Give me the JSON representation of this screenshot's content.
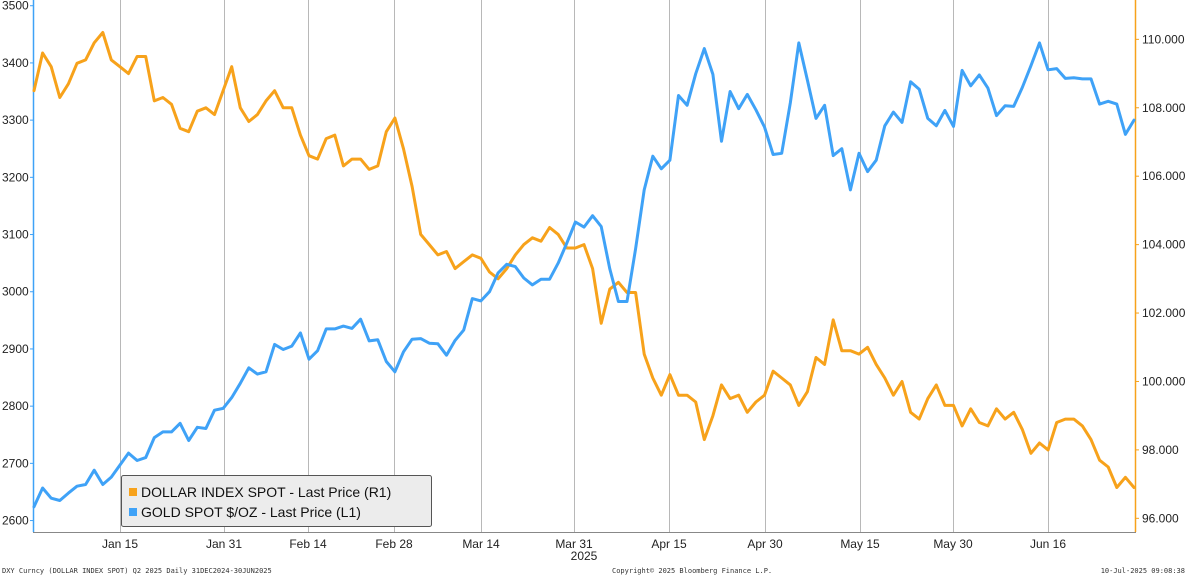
{
  "colors": {
    "dollar": "#F7A21B",
    "gold": "#3FA2F7",
    "left_axis": "#3FA2F7",
    "right_axis": "#F7A21B",
    "grid": "#b8b8b8",
    "legend_border": "#555555",
    "legend_bg": "#ececec"
  },
  "chart_data": {
    "type": "line",
    "title": "",
    "x_labels": [
      "Jan 15",
      "Jan 31",
      "Feb 14",
      "Feb 28",
      "Mar 14",
      "Mar 31",
      "Apr 15",
      "Apr 30",
      "May 15",
      "May 30",
      "Jun 16"
    ],
    "x_sub_label": "2025",
    "left_axis": {
      "ticks": [
        "3500",
        "3400",
        "3300",
        "3200",
        "3100",
        "3000",
        "2900",
        "2800",
        "2700",
        "2600"
      ],
      "range": [
        2580,
        3510
      ]
    },
    "right_axis": {
      "ticks": [
        "110.000",
        "108.000",
        "106.000",
        "104.000",
        "102.000",
        "100.000",
        "98.000",
        "96.000"
      ],
      "range": [
        95.6,
        111.15
      ]
    },
    "grid": "vertical",
    "legend_position": "bottom-left",
    "series": [
      {
        "name": "DOLLAR INDEX SPOT - Last Price (R1)",
        "axis": "right",
        "values": [
          108.5,
          109.6,
          109.2,
          108.3,
          108.7,
          109.3,
          109.4,
          109.9,
          110.2,
          109.4,
          109.2,
          109.0,
          109.5,
          109.5,
          108.2,
          108.3,
          108.1,
          107.4,
          107.3,
          107.9,
          108.0,
          107.8,
          108.5,
          109.2,
          108.0,
          107.6,
          107.8,
          108.2,
          108.5,
          108.0,
          108.0,
          107.2,
          106.6,
          106.5,
          107.1,
          107.2,
          106.3,
          106.5,
          106.5,
          106.2,
          106.3,
          107.3,
          107.7,
          106.8,
          105.7,
          104.3,
          104.0,
          103.7,
          103.8,
          103.3,
          103.5,
          103.7,
          103.6,
          103.2,
          103.0,
          103.3,
          103.7,
          104.0,
          104.2,
          104.1,
          104.5,
          104.3,
          103.9,
          103.9,
          104.0,
          103.3,
          101.7,
          102.7,
          102.9,
          102.6,
          102.6,
          100.8,
          100.1,
          99.6,
          100.2,
          99.6,
          99.6,
          99.4,
          98.3,
          99.0,
          99.9,
          99.5,
          99.6,
          99.1,
          99.4,
          99.6,
          100.3,
          100.1,
          99.9,
          99.3,
          99.7,
          100.7,
          100.5,
          101.8,
          100.9,
          100.9,
          100.8,
          101.0,
          100.5,
          100.1,
          99.6,
          100.0,
          99.1,
          98.9,
          99.5,
          99.9,
          99.3,
          99.3,
          98.7,
          99.2,
          98.8,
          98.7,
          99.2,
          98.9,
          99.1,
          98.6,
          97.9,
          98.2,
          98.0,
          98.8,
          98.9,
          98.9,
          98.7,
          98.3,
          97.7,
          97.5,
          96.9,
          97.2,
          96.9
        ]
      },
      {
        "name": "GOLD SPOT $/OZ - Last Price (L1)",
        "axis": "left",
        "values": [
          2624,
          2657,
          2639,
          2635,
          2648,
          2660,
          2663,
          2688,
          2663,
          2676,
          2697,
          2718,
          2705,
          2710,
          2745,
          2755,
          2755,
          2770,
          2740,
          2763,
          2761,
          2793,
          2796,
          2815,
          2840,
          2867,
          2856,
          2860,
          2908,
          2899,
          2905,
          2928,
          2882,
          2897,
          2935,
          2935,
          2940,
          2936,
          2952,
          2914,
          2916,
          2878,
          2860,
          2895,
          2917,
          2918,
          2910,
          2909,
          2889,
          2915,
          2933,
          2988,
          2984,
          3000,
          3033,
          3048,
          3044,
          3024,
          3012,
          3022,
          3022,
          3050,
          3085,
          3122,
          3113,
          3133,
          3114,
          3040,
          2983,
          2983,
          3075,
          3178,
          3237,
          3215,
          3230,
          3343,
          3326,
          3381,
          3425,
          3380,
          3263,
          3350,
          3320,
          3345,
          3318,
          3288,
          3240,
          3242,
          3330,
          3435,
          3370,
          3303,
          3326,
          3238,
          3250,
          3178,
          3242,
          3210,
          3230,
          3290,
          3314,
          3296,
          3367,
          3354,
          3303,
          3290,
          3317,
          3289,
          3387,
          3360,
          3379,
          3356,
          3308,
          3325,
          3324,
          3357,
          3395,
          3435,
          3388,
          3390,
          3373,
          3374,
          3372,
          3372,
          3328,
          3333,
          3328,
          3275,
          3300
        ]
      }
    ]
  },
  "footer": {
    "left": "DXY Curncy (DOLLAR INDEX SPOT) Q2 2025  Daily 31DEC2024-30JUN2025",
    "center": "Copyright© 2025 Bloomberg Finance L.P.",
    "right": "10-Jul-2025 09:08:38"
  }
}
